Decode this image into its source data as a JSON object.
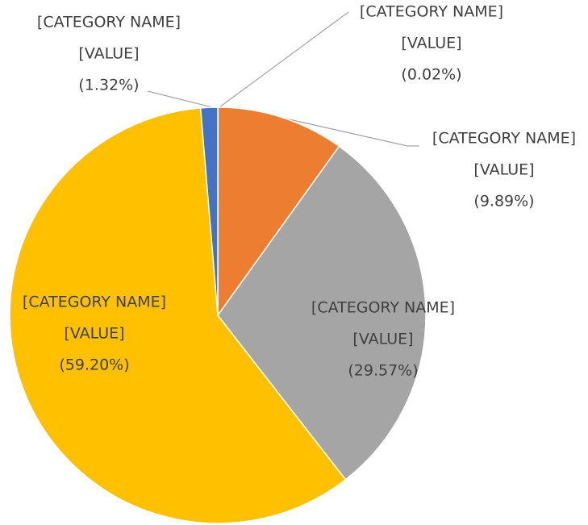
{
  "chart_data": {
    "type": "pie",
    "categories": [
      "[CATEGORY NAME]",
      "[CATEGORY NAME]",
      "[CATEGORY NAME]",
      "[CATEGORY NAME]",
      "[CATEGORY NAME]"
    ],
    "values": [
      0.02,
      9.89,
      29.57,
      59.2,
      1.32
    ],
    "value_labels": [
      "(0.02%)",
      "(9.89%)",
      "(29.57%)",
      "(59.20%)",
      "(1.32%)"
    ],
    "value_field_labels": [
      "[VALUE]",
      "[VALUE]",
      "[VALUE]",
      "[VALUE]",
      "[VALUE]"
    ],
    "colors": [
      "#4472c4",
      "#ed7d31",
      "#a5a5a5",
      "#ffc000",
      "#4472c4"
    ],
    "start_angle": 0,
    "direction": "clockwise"
  }
}
